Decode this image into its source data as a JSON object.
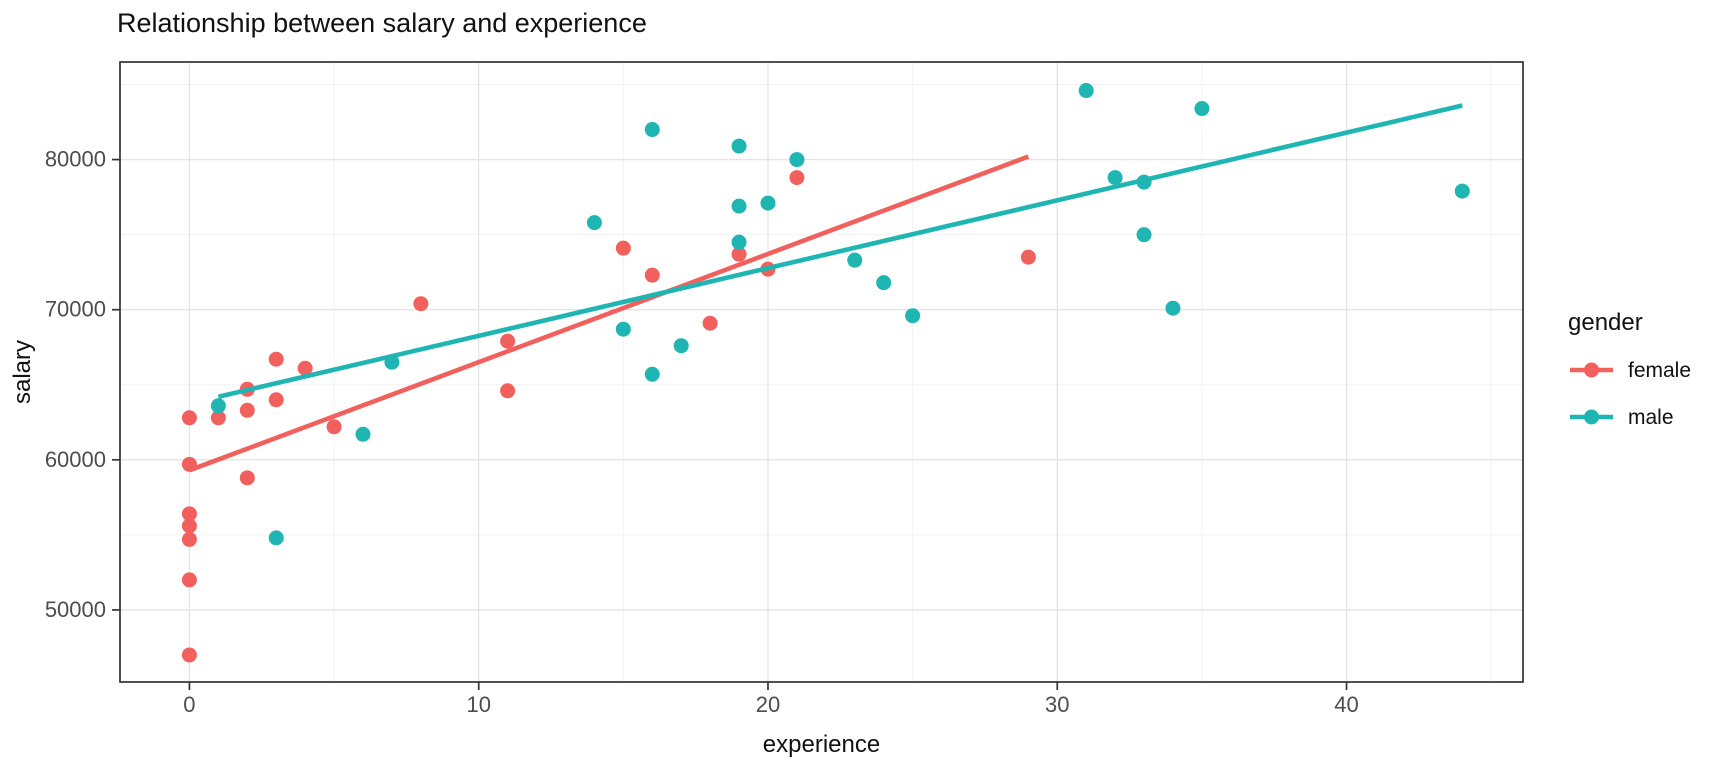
{
  "title": "Relationship between salary and experience",
  "x_axis": {
    "label": "experience",
    "ticks": [
      0,
      10,
      20,
      30,
      40
    ],
    "minor": [
      5,
      15,
      25,
      35,
      45
    ]
  },
  "y_axis": {
    "label": "salary",
    "ticks": [
      50000,
      60000,
      70000,
      80000
    ],
    "minor": [
      55000,
      65000,
      75000,
      85000
    ]
  },
  "legend": {
    "title": "gender",
    "entries": [
      {
        "label": "female",
        "color": "#F1605D"
      },
      {
        "label": "male",
        "color": "#1FB5B2"
      }
    ]
  },
  "chart_data": {
    "type": "scatter",
    "title": "Relationship between salary and experience",
    "xlabel": "experience",
    "ylabel": "salary",
    "xlim": [
      -2.4,
      46.1
    ],
    "ylim": [
      45200,
      86500
    ],
    "x_ticks": [
      0,
      10,
      20,
      30,
      40
    ],
    "x_minor": [
      5,
      15,
      25,
      35,
      45
    ],
    "y_ticks": [
      50000,
      60000,
      70000,
      80000
    ],
    "y_minor": [
      55000,
      65000,
      75000,
      85000
    ],
    "grid": true,
    "legend_position": "right",
    "series": [
      {
        "name": "female",
        "color": "#F1605D",
        "trend": [
          [
            0,
            59300
          ],
          [
            29,
            80200
          ]
        ],
        "points": [
          [
            0,
            62800
          ],
          [
            0,
            59700
          ],
          [
            0,
            56400
          ],
          [
            0,
            55600
          ],
          [
            0,
            54700
          ],
          [
            0,
            52000
          ],
          [
            0,
            47000
          ],
          [
            1,
            62800
          ],
          [
            2,
            64700
          ],
          [
            2,
            63300
          ],
          [
            2,
            58800
          ],
          [
            3,
            66700
          ],
          [
            3,
            64000
          ],
          [
            4,
            66100
          ],
          [
            5,
            62200
          ],
          [
            8,
            70400
          ],
          [
            11,
            67900
          ],
          [
            11,
            64600
          ],
          [
            15,
            74100
          ],
          [
            16,
            72300
          ],
          [
            18,
            69100
          ],
          [
            19,
            73700
          ],
          [
            20,
            72700
          ],
          [
            21,
            78800
          ],
          [
            29,
            73500
          ]
        ]
      },
      {
        "name": "male",
        "color": "#1FB5B2",
        "trend": [
          [
            1,
            64200
          ],
          [
            44,
            83600
          ]
        ],
        "points": [
          [
            1,
            63600
          ],
          [
            3,
            54800
          ],
          [
            6,
            61700
          ],
          [
            7,
            66500
          ],
          [
            14,
            75800
          ],
          [
            15,
            68700
          ],
          [
            16,
            82000
          ],
          [
            16,
            65700
          ],
          [
            17,
            67600
          ],
          [
            19,
            80900
          ],
          [
            19,
            76900
          ],
          [
            19,
            74500
          ],
          [
            20,
            77100
          ],
          [
            21,
            80000
          ],
          [
            23,
            73300
          ],
          [
            24,
            71800
          ],
          [
            25,
            69600
          ],
          [
            31,
            84600
          ],
          [
            32,
            78800
          ],
          [
            33,
            78500
          ],
          [
            33,
            75000
          ],
          [
            34,
            70100
          ],
          [
            35,
            83400
          ],
          [
            44,
            77900
          ]
        ]
      }
    ]
  },
  "style": {
    "panel_border": "#333333",
    "grid_major": "#e4e4e4",
    "grid_minor": "#f2f2f2",
    "tick_color": "#333333",
    "text_color": "#4d4d4d"
  }
}
